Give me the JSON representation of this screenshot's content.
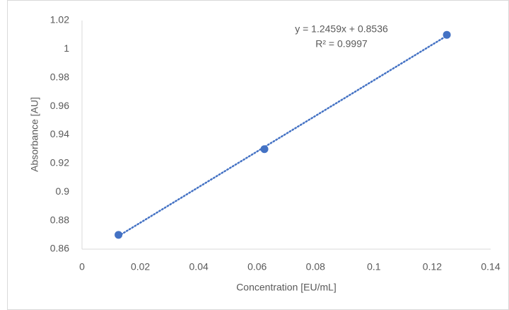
{
  "chart_data": {
    "type": "scatter",
    "x_label": "Concentration [EU/mL]",
    "y_label": "Absorbance [AU]",
    "series": [
      {
        "name": "Absorbance",
        "color": "#4472c4",
        "x": [
          0.0125,
          0.0625,
          0.125
        ],
        "values": [
          0.87,
          0.93,
          1.01
        ]
      }
    ],
    "trendline": {
      "slope": 1.2459,
      "intercept": 0.8536,
      "equation": "y = 1.2459x + 0.8536",
      "r_squared": "R² = 0.9997"
    },
    "xlim": [
      0,
      0.14
    ],
    "xticks": [
      0,
      0.02,
      0.04,
      0.06,
      0.08,
      0.1,
      0.12,
      0.14
    ],
    "ylim": [
      0.86,
      1.02
    ],
    "yticks": [
      0.86,
      0.88,
      0.9,
      0.92,
      0.94,
      0.96,
      0.98,
      1,
      1.02
    ],
    "grid": false
  }
}
